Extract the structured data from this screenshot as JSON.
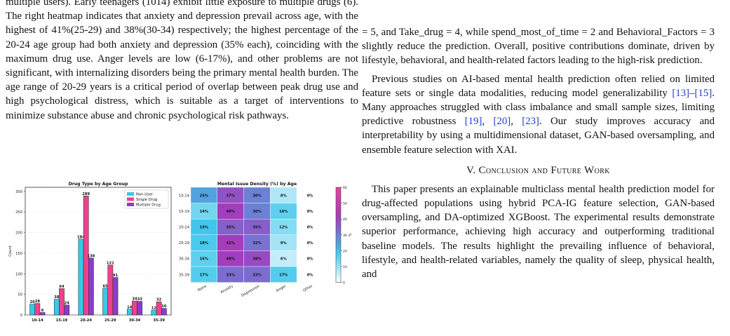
{
  "left_column": {
    "p1": "multiple users). Early teenagers (1014) exhibit little exposure to multiple drugs (6). The right heatmap indicates that anxiety and depression prevail across age, with the highest of 41%(25-29) and 38%(30-34) respectively; the highest percentage of the 20-24 age group had both anxiety and depression (35% each), coinciding with the maximum drug use. Anger levels are low (6-17%), and other problems are not significant, with internalizing disorders being the primary mental health burden. The age range of 20-29 years is a critical period of overlap between peak drug use and high psychological distress, which is suitable as a target of interventions to minimize substance abuse and chronic psychological risk pathways."
  },
  "right_column": {
    "p1": "= 5, and Take_drug = 4, while spend_most_of_time = 2 and Behavioral_Factors = 3 slightly reduce the prediction. Overall, positive contributions dominate, driven by lifestyle, behavioral, and health-related factors leading to the high-risk prediction.",
    "p2": {
      "t1": "Previous studies on AI-based mental health prediction often relied on limited feature sets or single data modalities, reducing model generalizability ",
      "r1": "[13]",
      "t2": "–",
      "r2": "[15]",
      "t3": ". Many approaches struggled with class imbalance and small sample sizes, limiting predictive robustness ",
      "r3": "[19]",
      "t4": ", ",
      "r4": "[20]",
      "t5": ", ",
      "r5": "[23]",
      "t6": ". Our study improves accuracy and interpretability by using a multidimensional dataset, GAN-based oversampling, and ensemble feature selection with XAI."
    },
    "section_num": "V.",
    "section_title": "Conclusion and Future Work",
    "p3": "This paper presents an explainable multiclass mental health prediction model for drug-affected populations using hybrid PCA-IG feature selection, GAN-based oversampling, and DA-optimized XGBoost. The experimental results demonstrate superior performance, achieving high accuracy and outperforming traditional baseline models. The results highlight the prevailing influence of behavioral, lifestyle, and health-related variables, namely the quality of sleep, physical health, and"
  },
  "chart_data": [
    {
      "type": "bar",
      "title": "Drug Type by Age Group",
      "ylabel": "Count",
      "xlabel": "",
      "categories": [
        "10-14",
        "15-19",
        "20-24",
        "25-29",
        "30-34",
        "35-39"
      ],
      "series": [
        {
          "name": "Non-User",
          "values": [
            26,
            38,
            184,
            65,
            14,
            12
          ],
          "color": "#38c8e8"
        },
        {
          "name": "Single Drug",
          "values": [
            28,
            64,
            289,
            121,
            34,
            32
          ],
          "color": "#f0428c"
        },
        {
          "name": "Multiple Drug",
          "values": [
            6,
            24,
            138,
            91,
            33,
            16
          ],
          "color": "#8a3dcc"
        }
      ],
      "ylim": [
        0,
        310
      ],
      "yticks": [
        0,
        50,
        100,
        150,
        200,
        250,
        300
      ],
      "legend": "top-right",
      "grid": true
    },
    {
      "type": "heatmap",
      "title": "Mental Issue Density (%) by Age",
      "rows": [
        "10-14",
        "15-19",
        "20-24",
        "25-29",
        "30-34",
        "35-39"
      ],
      "columns": [
        "None",
        "Anxiety",
        "Depression",
        "Anger",
        "Other"
      ],
      "values": [
        [
          25,
          37,
          30,
          8,
          0
        ],
        [
          14,
          40,
          30,
          16,
          0
        ],
        [
          19,
          35,
          35,
          12,
          0
        ],
        [
          18,
          41,
          32,
          9,
          0
        ],
        [
          16,
          40,
          38,
          6,
          0
        ],
        [
          17,
          33,
          33,
          17,
          0
        ]
      ],
      "value_suffix": "%",
      "colorbar": {
        "min": 0,
        "max": 60,
        "ticks": [
          0,
          10,
          20,
          30,
          40,
          50,
          60
        ],
        "label": "%"
      },
      "colorscale": [
        "#ffffff",
        "#36c4ea",
        "#a23dbd",
        "#e74299"
      ]
    }
  ]
}
